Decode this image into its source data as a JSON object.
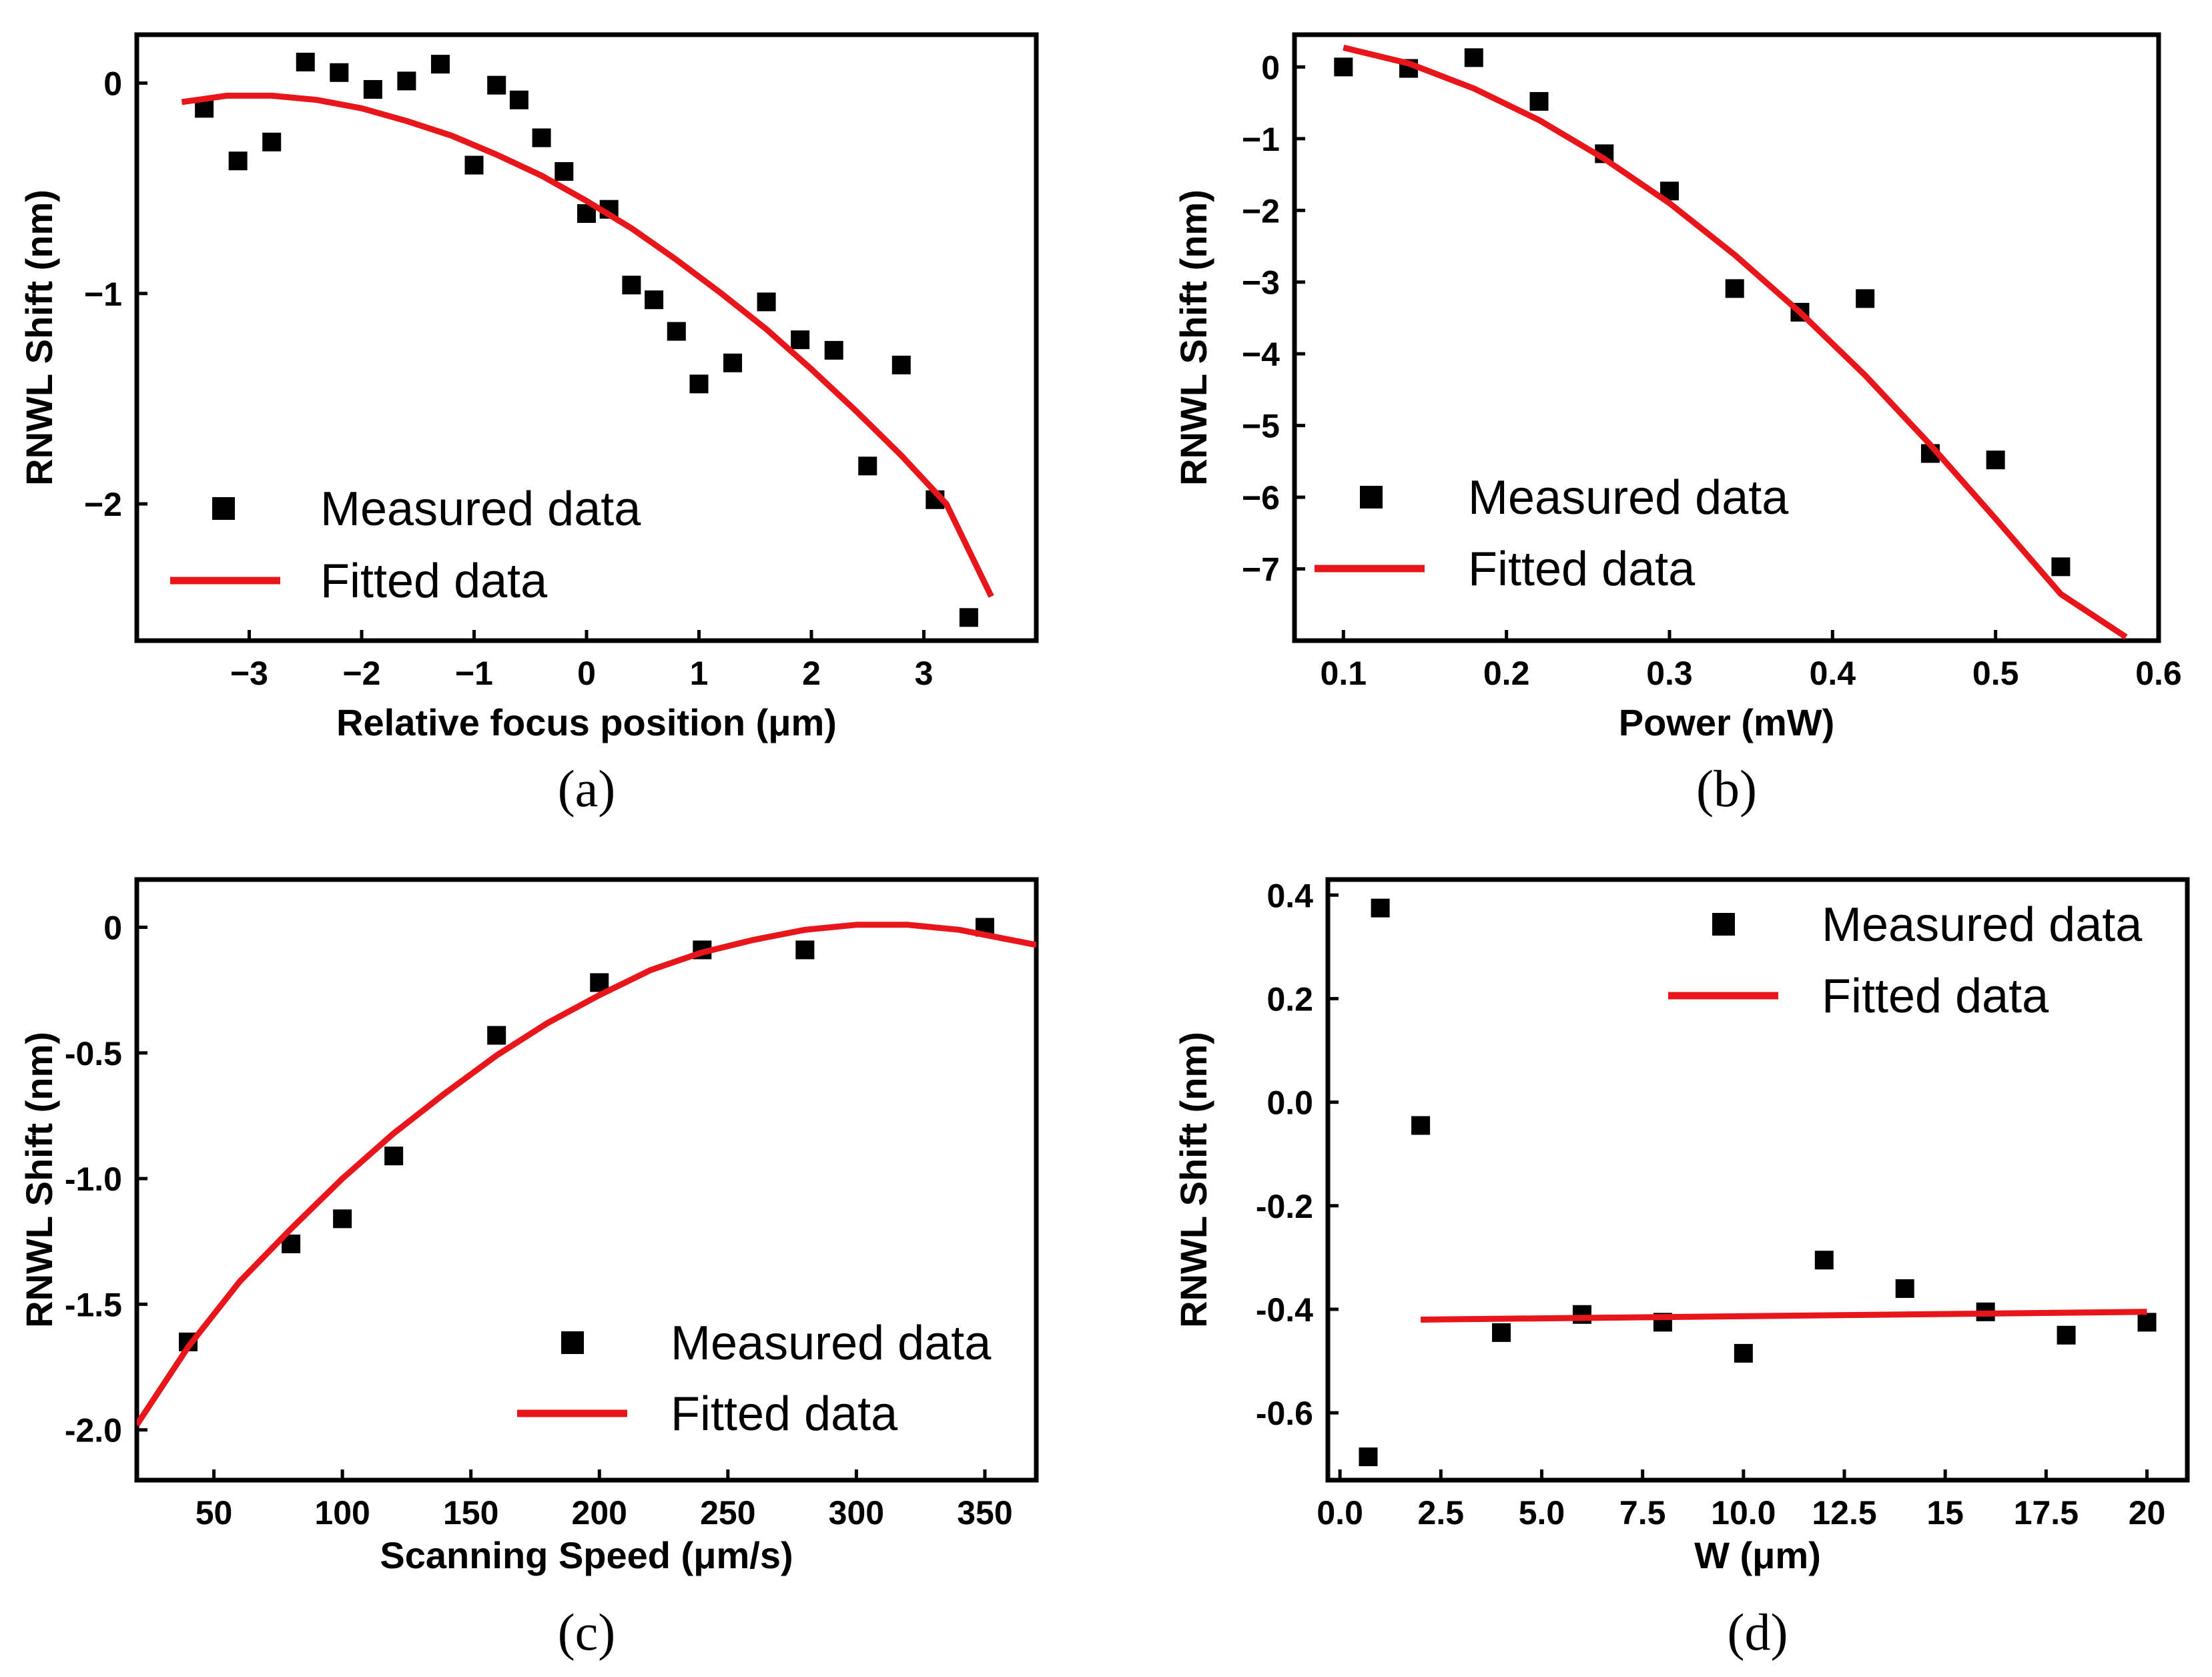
{
  "chart_data": [
    {
      "type": "scatter",
      "panel_label": "(a)",
      "xlabel": "Relative focus position (μm)",
      "ylabel": "RNWL Shift (nm)",
      "xlim": [
        -4.0,
        4.0
      ],
      "ylim": [
        -2.65,
        0.23
      ],
      "xticks": [
        -3,
        -2,
        -1,
        0,
        1,
        2,
        3
      ],
      "xtick_labels": [
        "−3",
        "−2",
        "−1",
        "0",
        "1",
        "2",
        "3"
      ],
      "yticks": [
        0,
        -1,
        -2
      ],
      "ytick_labels": [
        "0",
        "−1",
        "−2"
      ],
      "legend_position": "bottom-left",
      "series": [
        {
          "name": "Measured data",
          "kind": "scatter",
          "color": "#000000",
          "x": [
            -3.4,
            -3.1,
            -2.8,
            -2.5,
            -2.2,
            -1.9,
            -1.6,
            -1.3,
            -1.0,
            -0.8,
            -0.6,
            -0.4,
            -0.2,
            0.0,
            0.2,
            0.4,
            0.6,
            0.8,
            1.0,
            1.3,
            1.6,
            1.9,
            2.2,
            2.5,
            2.8,
            3.1,
            3.4
          ],
          "y": [
            -0.12,
            -0.37,
            -0.28,
            0.1,
            0.05,
            -0.03,
            0.01,
            0.09,
            -0.39,
            -0.01,
            -0.08,
            -0.26,
            -0.42,
            -0.62,
            -0.6,
            -0.96,
            -1.03,
            -1.18,
            -1.43,
            -1.33,
            -1.04,
            -1.22,
            -1.27,
            -1.82,
            -1.34,
            -1.98,
            -2.54
          ]
        },
        {
          "name": "Fitted data",
          "kind": "line",
          "color": "#e8161b",
          "x": [
            -3.6,
            -3.2,
            -2.8,
            -2.4,
            -2.0,
            -1.6,
            -1.2,
            -0.8,
            -0.4,
            0.0,
            0.4,
            0.8,
            1.2,
            1.6,
            2.0,
            2.4,
            2.8,
            3.2,
            3.6
          ],
          "y": [
            -0.09,
            -0.06,
            -0.06,
            -0.08,
            -0.12,
            -0.18,
            -0.25,
            -0.34,
            -0.44,
            -0.56,
            -0.69,
            -0.84,
            -1.0,
            -1.17,
            -1.36,
            -1.56,
            -1.77,
            -2.0,
            -2.44
          ]
        }
      ]
    },
    {
      "type": "scatter",
      "panel_label": "(b)",
      "xlabel": "Power (mW)",
      "ylabel": "RNWL Shift (nm)",
      "xlim": [
        0.07,
        0.6
      ],
      "ylim": [
        -8.0,
        0.45
      ],
      "xticks": [
        0.1,
        0.2,
        0.3,
        0.4,
        0.5,
        0.6
      ],
      "xtick_labels": [
        "0.1",
        "0.2",
        "0.3",
        "0.4",
        "0.5",
        "0.6"
      ],
      "yticks": [
        0,
        -1,
        -2,
        -3,
        -4,
        -5,
        -6,
        -7
      ],
      "ytick_labels": [
        "0",
        "−1",
        "−2",
        "−3",
        "−4",
        "−5",
        "−6",
        "−7"
      ],
      "legend_position": "bottom-left",
      "series": [
        {
          "name": "Measured data",
          "kind": "scatter",
          "color": "#000000",
          "x": [
            0.1,
            0.14,
            0.18,
            0.22,
            0.26,
            0.3,
            0.34,
            0.38,
            0.42,
            0.46,
            0.5,
            0.54
          ],
          "y": [
            0.0,
            -0.02,
            0.13,
            -0.48,
            -1.21,
            -1.73,
            -3.09,
            -3.42,
            -3.23,
            -5.39,
            -5.48,
            -6.97
          ]
        },
        {
          "name": "Fitted data",
          "kind": "line",
          "color": "#e8161b",
          "x": [
            0.1,
            0.14,
            0.18,
            0.22,
            0.26,
            0.3,
            0.34,
            0.38,
            0.42,
            0.46,
            0.5,
            0.54,
            0.58
          ],
          "y": [
            0.27,
            0.05,
            -0.3,
            -0.74,
            -1.28,
            -1.9,
            -2.62,
            -3.42,
            -4.3,
            -5.27,
            -6.3,
            -7.35,
            -7.95
          ]
        }
      ]
    },
    {
      "type": "scatter",
      "panel_label": "(c)",
      "xlabel": "Scanning Speed (μm/s)",
      "ylabel": "RNWL Shift (nm)",
      "xlim": [
        20,
        370
      ],
      "ylim": [
        -2.2,
        0.19
      ],
      "xticks": [
        50,
        100,
        150,
        200,
        250,
        300,
        350
      ],
      "xtick_labels": [
        "50",
        "100",
        "150",
        "200",
        "250",
        "300",
        "350"
      ],
      "yticks": [
        0,
        -0.5,
        -1.0,
        -1.5,
        -2.0
      ],
      "ytick_labels": [
        "0",
        "-0.5",
        "-1.0",
        "-1.5",
        "-2.0"
      ],
      "legend_position": "bottom-right",
      "series": [
        {
          "name": "Measured data",
          "kind": "scatter",
          "color": "#000000",
          "x": [
            40,
            80,
            100,
            120,
            160,
            200,
            240,
            280,
            350
          ],
          "y": [
            -1.65,
            -1.26,
            -1.16,
            -0.91,
            -0.43,
            -0.22,
            -0.09,
            -0.09,
            0.0
          ]
        },
        {
          "name": "Fitted data",
          "kind": "line",
          "color": "#e8161b",
          "x": [
            20,
            40,
            60,
            80,
            100,
            120,
            140,
            160,
            180,
            200,
            220,
            240,
            260,
            280,
            300,
            320,
            340,
            360,
            370
          ],
          "y": [
            -1.98,
            -1.67,
            -1.41,
            -1.2,
            -1.0,
            -0.82,
            -0.66,
            -0.51,
            -0.38,
            -0.27,
            -0.17,
            -0.1,
            -0.05,
            -0.01,
            0.01,
            0.01,
            -0.01,
            -0.05,
            -0.07
          ]
        }
      ]
    },
    {
      "type": "scatter",
      "panel_label": "(d)",
      "xlabel": "W (μm)",
      "ylabel": "RNWL Shift (nm)",
      "xlim": [
        -0.3,
        21.0
      ],
      "ylim": [
        -0.73,
        0.43
      ],
      "xticks": [
        0.0,
        2.5,
        5.0,
        7.5,
        10.0,
        12.5,
        15,
        17.5,
        20
      ],
      "xtick_labels": [
        "0.0",
        "2.5",
        "5.0",
        "7.5",
        "10.0",
        "12.5",
        "15",
        "17.5",
        "20"
      ],
      "yticks": [
        0.4,
        0.2,
        0.0,
        -0.2,
        -0.4,
        -0.6
      ],
      "ytick_labels": [
        "0.4",
        "0.2",
        "0.0",
        "-0.2",
        "-0.4",
        "-0.6"
      ],
      "legend_position": "top-right",
      "series": [
        {
          "name": "Measured data",
          "kind": "scatter",
          "color": "#000000",
          "x": [
            0.7,
            1.0,
            2.0,
            4.0,
            6.0,
            8.0,
            10.0,
            12.0,
            14.0,
            16.0,
            18.0,
            20.0
          ],
          "y": [
            -0.685,
            0.375,
            -0.045,
            -0.445,
            -0.41,
            -0.425,
            -0.485,
            -0.305,
            -0.36,
            -0.405,
            -0.45,
            -0.425
          ]
        },
        {
          "name": "Fitted data",
          "kind": "line",
          "color": "#e8161b",
          "x": [
            2.0,
            20.0
          ],
          "y": [
            -0.42,
            -0.405
          ]
        }
      ]
    }
  ]
}
